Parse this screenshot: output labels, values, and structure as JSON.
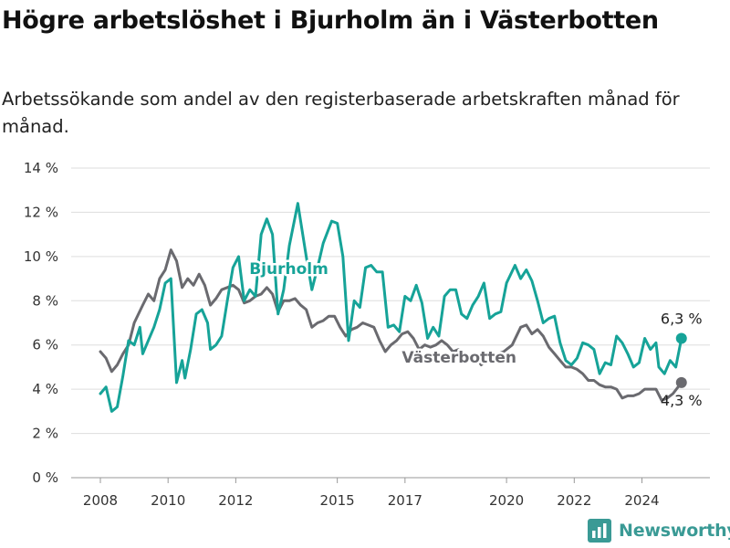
{
  "title": "Högre arbetslöshet i Bjurholm än i Västerbotten",
  "subtitle": "Arbetssökande som andel av den registerbaserade arbetskraften månad för månad.",
  "brand": "Newsworthy",
  "chart_data": {
    "type": "line",
    "x_ticks": [
      "2008",
      "2010",
      "2012",
      "2015",
      "2017",
      "2020",
      "2022",
      "2024"
    ],
    "y_ticks": [
      "0 %",
      "2 %",
      "4 %",
      "6 %",
      "8 %",
      "10 %",
      "12 %",
      "14 %"
    ],
    "ylim": [
      0,
      14
    ],
    "grid": true,
    "series": [
      {
        "name": "Bjurholm",
        "color": "#16a398",
        "end_label": "6,3 %",
        "points": [
          [
            "2008-01",
            3.8
          ],
          [
            "2008-03",
            4.1
          ],
          [
            "2008-05",
            3.0
          ],
          [
            "2008-07",
            3.2
          ],
          [
            "2008-09",
            4.6
          ],
          [
            "2008-11",
            6.2
          ],
          [
            "2009-01",
            6.0
          ],
          [
            "2009-03",
            6.8
          ],
          [
            "2009-04",
            5.6
          ],
          [
            "2009-06",
            6.2
          ],
          [
            "2009-08",
            6.8
          ],
          [
            "2009-10",
            7.6
          ],
          [
            "2009-12",
            8.8
          ],
          [
            "2010-02",
            9.0
          ],
          [
            "2010-04",
            4.3
          ],
          [
            "2010-06",
            5.3
          ],
          [
            "2010-07",
            4.5
          ],
          [
            "2010-09",
            5.8
          ],
          [
            "2010-11",
            7.4
          ],
          [
            "2011-01",
            7.6
          ],
          [
            "2011-03",
            7.0
          ],
          [
            "2011-04",
            5.8
          ],
          [
            "2011-06",
            6.0
          ],
          [
            "2011-08",
            6.4
          ],
          [
            "2011-10",
            8.0
          ],
          [
            "2011-12",
            9.5
          ],
          [
            "2012-02",
            10.0
          ],
          [
            "2012-04",
            8.0
          ],
          [
            "2012-06",
            8.5
          ],
          [
            "2012-08",
            8.2
          ],
          [
            "2012-10",
            11.0
          ],
          [
            "2012-12",
            11.7
          ],
          [
            "2013-02",
            11.0
          ],
          [
            "2013-04",
            7.4
          ],
          [
            "2013-06",
            8.5
          ],
          [
            "2013-08",
            10.5
          ],
          [
            "2013-11",
            12.4
          ],
          [
            "2014-02",
            10.0
          ],
          [
            "2014-04",
            8.5
          ],
          [
            "2014-06",
            9.5
          ],
          [
            "2014-08",
            10.6
          ],
          [
            "2014-11",
            11.6
          ],
          [
            "2015-01",
            11.5
          ],
          [
            "2015-03",
            10.0
          ],
          [
            "2015-05",
            6.2
          ],
          [
            "2015-07",
            8.0
          ],
          [
            "2015-09",
            7.7
          ],
          [
            "2015-11",
            9.5
          ],
          [
            "2016-01",
            9.6
          ],
          [
            "2016-03",
            9.3
          ],
          [
            "2016-05",
            9.3
          ],
          [
            "2016-07",
            6.8
          ],
          [
            "2016-09",
            6.9
          ],
          [
            "2016-11",
            6.6
          ],
          [
            "2017-01",
            8.2
          ],
          [
            "2017-03",
            8.0
          ],
          [
            "2017-05",
            8.7
          ],
          [
            "2017-07",
            7.9
          ],
          [
            "2017-09",
            6.3
          ],
          [
            "2017-11",
            6.8
          ],
          [
            "2018-01",
            6.4
          ],
          [
            "2018-03",
            8.2
          ],
          [
            "2018-05",
            8.5
          ],
          [
            "2018-07",
            8.5
          ],
          [
            "2018-09",
            7.4
          ],
          [
            "2018-11",
            7.2
          ],
          [
            "2019-01",
            7.8
          ],
          [
            "2019-03",
            8.2
          ],
          [
            "2019-05",
            8.8
          ],
          [
            "2019-07",
            7.2
          ],
          [
            "2019-09",
            7.4
          ],
          [
            "2019-11",
            7.5
          ],
          [
            "2020-01",
            8.8
          ],
          [
            "2020-04",
            9.6
          ],
          [
            "2020-06",
            9.0
          ],
          [
            "2020-08",
            9.4
          ],
          [
            "2020-10",
            8.9
          ],
          [
            "2020-12",
            8.0
          ],
          [
            "2021-02",
            7.0
          ],
          [
            "2021-04",
            7.2
          ],
          [
            "2021-06",
            7.3
          ],
          [
            "2021-08",
            6.1
          ],
          [
            "2021-10",
            5.3
          ],
          [
            "2021-12",
            5.1
          ],
          [
            "2022-02",
            5.4
          ],
          [
            "2022-04",
            6.1
          ],
          [
            "2022-06",
            6.0
          ],
          [
            "2022-08",
            5.8
          ],
          [
            "2022-10",
            4.7
          ],
          [
            "2022-12",
            5.2
          ],
          [
            "2023-02",
            5.1
          ],
          [
            "2023-04",
            6.4
          ],
          [
            "2023-06",
            6.1
          ],
          [
            "2023-08",
            5.6
          ],
          [
            "2023-10",
            5.0
          ],
          [
            "2023-12",
            5.2
          ],
          [
            "2024-02",
            6.3
          ],
          [
            "2024-04",
            5.8
          ],
          [
            "2024-06",
            6.1
          ],
          [
            "2024-07",
            5.0
          ],
          [
            "2024-09",
            4.7
          ],
          [
            "2024-11",
            5.3
          ],
          [
            "2025-01",
            5.0
          ],
          [
            "2025-03",
            6.3
          ]
        ]
      },
      {
        "name": "Västerbotten",
        "color": "#6a6a6f",
        "end_label": "4,3 %",
        "points": [
          [
            "2008-01",
            5.7
          ],
          [
            "2008-03",
            5.4
          ],
          [
            "2008-05",
            4.8
          ],
          [
            "2008-07",
            5.1
          ],
          [
            "2008-09",
            5.6
          ],
          [
            "2008-11",
            6.0
          ],
          [
            "2009-01",
            7.0
          ],
          [
            "2009-04",
            7.8
          ],
          [
            "2009-06",
            8.3
          ],
          [
            "2009-08",
            8.0
          ],
          [
            "2009-10",
            9.0
          ],
          [
            "2009-12",
            9.4
          ],
          [
            "2010-02",
            10.3
          ],
          [
            "2010-04",
            9.8
          ],
          [
            "2010-06",
            8.6
          ],
          [
            "2010-08",
            9.0
          ],
          [
            "2010-10",
            8.7
          ],
          [
            "2010-12",
            9.2
          ],
          [
            "2011-02",
            8.7
          ],
          [
            "2011-04",
            7.8
          ],
          [
            "2011-06",
            8.1
          ],
          [
            "2011-08",
            8.5
          ],
          [
            "2011-10",
            8.6
          ],
          [
            "2011-12",
            8.7
          ],
          [
            "2012-02",
            8.5
          ],
          [
            "2012-04",
            7.9
          ],
          [
            "2012-06",
            8.0
          ],
          [
            "2012-08",
            8.2
          ],
          [
            "2012-10",
            8.3
          ],
          [
            "2012-12",
            8.6
          ],
          [
            "2013-02",
            8.3
          ],
          [
            "2013-04",
            7.5
          ],
          [
            "2013-06",
            8.0
          ],
          [
            "2013-08",
            8.0
          ],
          [
            "2013-10",
            8.1
          ],
          [
            "2013-12",
            7.8
          ],
          [
            "2014-02",
            7.6
          ],
          [
            "2014-04",
            6.8
          ],
          [
            "2014-06",
            7.0
          ],
          [
            "2014-08",
            7.1
          ],
          [
            "2014-10",
            7.3
          ],
          [
            "2014-12",
            7.3
          ],
          [
            "2015-02",
            6.8
          ],
          [
            "2015-04",
            6.4
          ],
          [
            "2015-06",
            6.7
          ],
          [
            "2015-08",
            6.8
          ],
          [
            "2015-10",
            7.0
          ],
          [
            "2015-12",
            6.9
          ],
          [
            "2016-02",
            6.8
          ],
          [
            "2016-04",
            6.2
          ],
          [
            "2016-06",
            5.7
          ],
          [
            "2016-08",
            6.0
          ],
          [
            "2016-10",
            6.2
          ],
          [
            "2016-12",
            6.5
          ],
          [
            "2017-02",
            6.6
          ],
          [
            "2017-04",
            6.3
          ],
          [
            "2017-06",
            5.8
          ],
          [
            "2017-08",
            6.0
          ],
          [
            "2017-10",
            5.9
          ],
          [
            "2017-12",
            6.0
          ],
          [
            "2018-02",
            6.2
          ],
          [
            "2018-04",
            6.0
          ],
          [
            "2018-06",
            5.7
          ],
          [
            "2018-08",
            5.8
          ],
          [
            "2018-10",
            5.5
          ],
          [
            "2018-12",
            5.3
          ],
          [
            "2019-02",
            5.5
          ],
          [
            "2019-04",
            5.1
          ],
          [
            "2019-06",
            5.3
          ],
          [
            "2019-08",
            5.5
          ],
          [
            "2019-10",
            5.6
          ],
          [
            "2019-12",
            5.7
          ],
          [
            "2020-03",
            6.0
          ],
          [
            "2020-06",
            6.8
          ],
          [
            "2020-08",
            6.9
          ],
          [
            "2020-10",
            6.5
          ],
          [
            "2020-12",
            6.7
          ],
          [
            "2021-02",
            6.4
          ],
          [
            "2021-04",
            5.9
          ],
          [
            "2021-06",
            5.6
          ],
          [
            "2021-08",
            5.3
          ],
          [
            "2021-10",
            5.0
          ],
          [
            "2021-12",
            5.0
          ],
          [
            "2022-02",
            4.9
          ],
          [
            "2022-04",
            4.7
          ],
          [
            "2022-06",
            4.4
          ],
          [
            "2022-08",
            4.4
          ],
          [
            "2022-10",
            4.2
          ],
          [
            "2022-12",
            4.1
          ],
          [
            "2023-02",
            4.1
          ],
          [
            "2023-04",
            4.0
          ],
          [
            "2023-06",
            3.6
          ],
          [
            "2023-08",
            3.7
          ],
          [
            "2023-10",
            3.7
          ],
          [
            "2023-12",
            3.8
          ],
          [
            "2024-02",
            4.0
          ],
          [
            "2024-04",
            4.0
          ],
          [
            "2024-06",
            4.0
          ],
          [
            "2024-08",
            3.5
          ],
          [
            "2024-10",
            3.6
          ],
          [
            "2024-12",
            3.8
          ],
          [
            "2025-03",
            4.3
          ]
        ]
      }
    ]
  }
}
